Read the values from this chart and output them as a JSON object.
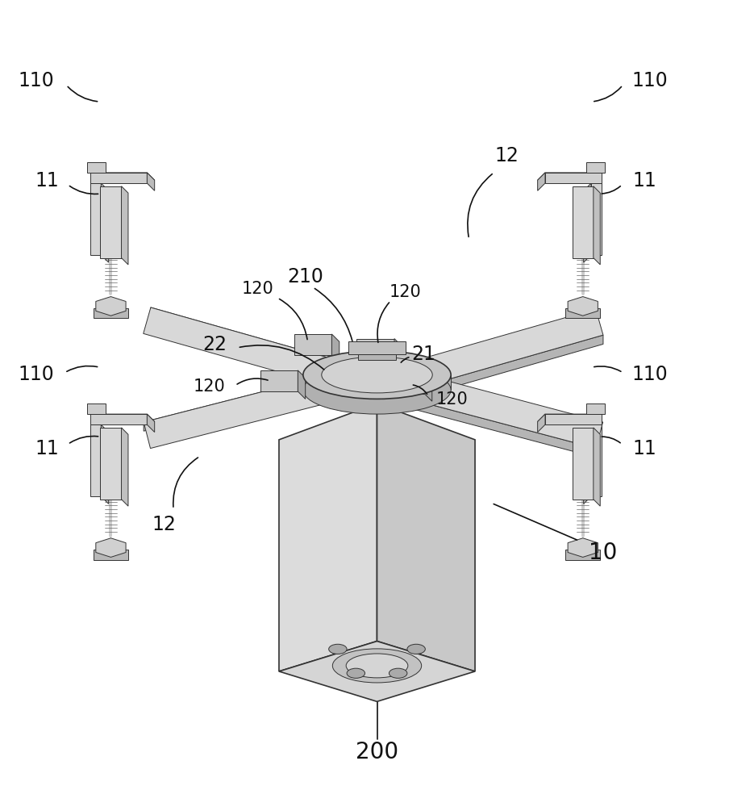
{
  "bg_color": "#ffffff",
  "line_color": "#333333",
  "fig_width": 9.35,
  "fig_height": 10.0,
  "dpi": 100
}
